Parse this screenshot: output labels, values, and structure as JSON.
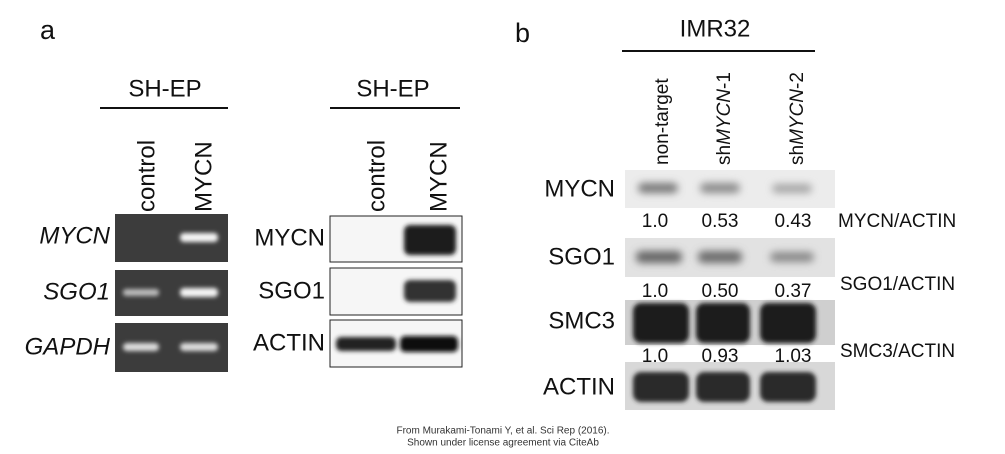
{
  "panel_a": {
    "label": "a",
    "rtpcr": {
      "header": "SH-EP",
      "columns": [
        "control",
        "MYCN"
      ],
      "rows": [
        "MYCN",
        "SGO1",
        "GAPDH"
      ]
    },
    "western": {
      "header": "SH-EP",
      "columns": [
        "control",
        "MYCN"
      ],
      "rows": [
        "MYCN",
        "SGO1",
        "ACTIN"
      ]
    }
  },
  "panel_b": {
    "label": "b",
    "header": "IMR32",
    "columns": [
      {
        "text": "non-target"
      },
      {
        "prefix": "sh",
        "gene": "MYCN",
        "suffix": "-1"
      },
      {
        "prefix": "sh",
        "gene": "MYCN",
        "suffix": "-2"
      }
    ],
    "rows": [
      {
        "label": "MYCN",
        "ratio_label": "MYCN/ACTIN",
        "ratios": [
          "1.0",
          "0.53",
          "0.43"
        ]
      },
      {
        "label": "SGO1",
        "ratio_label": "SGO1/ACTIN",
        "ratios": [
          "1.0",
          "0.50",
          "0.37"
        ]
      },
      {
        "label": "SMC3",
        "ratio_label": "SMC3/ACTIN",
        "ratios": [
          "1.0",
          "0.93",
          "1.03"
        ]
      },
      {
        "label": "ACTIN"
      }
    ]
  },
  "footer": [
    "From Murakami-Tonami Y, et al. Sci Rep (2016).",
    "Shown under license agreement via CiteAb"
  ]
}
